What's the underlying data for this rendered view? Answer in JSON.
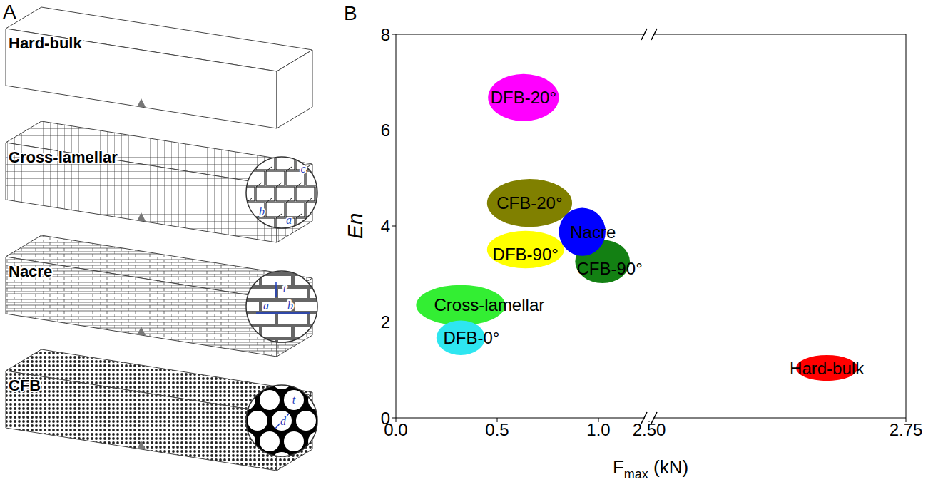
{
  "diagram": {
    "panel_label": "A",
    "beams": [
      {
        "label": "Hard-bulk"
      },
      {
        "label": "Cross-lamellar",
        "inset_labels": [
          "a",
          "b",
          "c"
        ]
      },
      {
        "label": "Nacre",
        "inset_labels": [
          "a",
          "b",
          "t"
        ]
      },
      {
        "label": "CFB",
        "inset_labels": [
          "t",
          "d"
        ]
      }
    ]
  },
  "chart_data": {
    "type": "scatter",
    "panel_label": "B",
    "xlabel": [
      "F",
      "max",
      " (kN)"
    ],
    "ylabel": "En",
    "xlim": [
      0,
      2.75
    ],
    "xbreak": [
      1.25,
      2.5
    ],
    "xticks": [
      {
        "value": 0,
        "label": "0.0"
      },
      0.5,
      {
        "value": 1,
        "label": "1.0"
      },
      {
        "value": 2.5,
        "label": "2.50"
      },
      {
        "value": 2.75,
        "label": "2.75"
      }
    ],
    "ylim": [
      0,
      8
    ],
    "yticks": [
      0,
      2,
      4,
      6,
      8
    ],
    "marker": "ellipse",
    "data_labels": true,
    "series": [
      {
        "name": "DFB-20°",
        "color": "#ff00ff",
        "x": 0.63,
        "y": 6.68,
        "x_err": 0.175,
        "y_err": 0.49
      },
      {
        "name": "CFB-20°",
        "color": "#808000",
        "x": 0.66,
        "y": 4.48,
        "x_err": 0.21,
        "y_err": 0.5
      },
      {
        "name": "DFB-90°",
        "color": "#ffff00",
        "x": 0.64,
        "y": 3.51,
        "x_err": 0.19,
        "y_err": 0.39
      },
      {
        "name": "CFB-90°",
        "color": "#138013",
        "x": 1.02,
        "y": 3.26,
        "x_err": 0.135,
        "y_err": 0.45
      },
      {
        "name": "Nacre",
        "color": "#0000ff",
        "x": 0.92,
        "y": 3.88,
        "x_err": 0.115,
        "y_err": 0.5
      },
      {
        "name": "Cross-lamellar",
        "color": "#33ee33",
        "x": 0.32,
        "y": 2.35,
        "x_err": 0.22,
        "y_err": 0.42
      },
      {
        "name": "DFB-0°",
        "color": "#2ee6f0",
        "x": 0.32,
        "y": 1.67,
        "x_err": 0.12,
        "y_err": 0.36
      },
      {
        "name": "Hard-bulk",
        "color": "#ff0000",
        "x": 2.673,
        "y": 1.04,
        "x_err": 0.03,
        "y_err": 0.27
      }
    ]
  }
}
